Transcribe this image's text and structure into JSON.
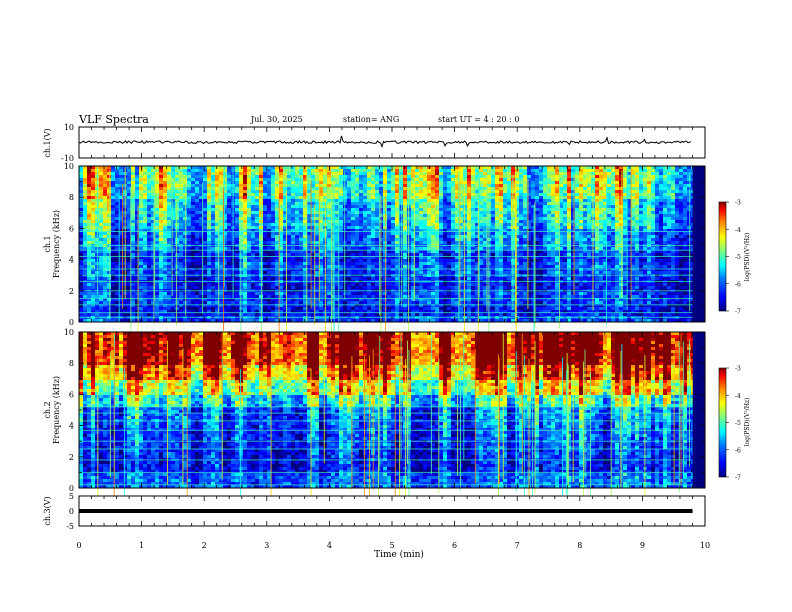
{
  "header": {
    "title": "VLF Spectra",
    "date": "Jul. 30, 2025",
    "station": "station= ANG",
    "start": "start UT =  4 : 20 : 0"
  },
  "colors": {
    "spectrum": [
      "#00007f",
      "#0000ff",
      "#007fff",
      "#00ffff",
      "#7fff7f",
      "#ffff00",
      "#ff7f00",
      "#ff0000",
      "#7f0000"
    ]
  },
  "chart_data": [
    {
      "type": "line",
      "name": "ch1-waveform",
      "ylabel": "ch.1(V)",
      "ylim": [
        -10,
        10
      ],
      "ytick_labels": [
        "10",
        "-10"
      ],
      "xlim": [
        0,
        10
      ],
      "x": [
        0,
        1,
        2,
        3,
        4,
        5,
        6,
        7,
        8,
        9,
        9.8
      ],
      "y": [
        0.2,
        0.3,
        0.1,
        0.2,
        0.3,
        0.2,
        0.1,
        0.2,
        0.3,
        0.2,
        0.2
      ]
    },
    {
      "type": "heatmap",
      "name": "ch1-spectrogram",
      "ylabel_top": "ch.1",
      "ylabel": "Frequency (kHz)",
      "ylim": [
        0,
        10
      ],
      "yticks": [
        0,
        2,
        4,
        6,
        8,
        10
      ],
      "ytick_labels": [
        "0",
        "2",
        "4",
        "6",
        "8",
        "10"
      ],
      "xlim": [
        0,
        10
      ],
      "data_until_min": 9.8,
      "colorbar": {
        "label": "log(PSD)(V²/Hz)",
        "range": [
          -7,
          -3
        ],
        "tick_labels": [
          "-3",
          "-4",
          "-5",
          "-6",
          "-7"
        ]
      },
      "band_levels_log_psd": [
        {
          "kHz": [
            0.0,
            0.4
          ],
          "level": -6.4
        },
        {
          "kHz": [
            0.4,
            1.2
          ],
          "level": -6.8
        },
        {
          "kHz": [
            1.2,
            2.0
          ],
          "level": -6.6
        },
        {
          "kHz": [
            2.0,
            3.0
          ],
          "level": -6.9
        },
        {
          "kHz": [
            3.0,
            4.0
          ],
          "level": -6.7
        },
        {
          "kHz": [
            4.0,
            4.8
          ],
          "level": -6.9
        },
        {
          "kHz": [
            4.8,
            6.0
          ],
          "level": -6.5
        },
        {
          "kHz": [
            6.0,
            8.0
          ],
          "level": -6.2
        },
        {
          "kHz": [
            8.0,
            10.0
          ],
          "level": -5.8
        }
      ]
    },
    {
      "type": "heatmap",
      "name": "ch2-spectrogram",
      "ylabel_top": "ch.2",
      "ylabel": "Frequency (kHz)",
      "ylim": [
        0,
        10
      ],
      "yticks": [
        0,
        2,
        4,
        6,
        8,
        10
      ],
      "ytick_labels": [
        "0",
        "2",
        "4",
        "6",
        "8",
        "10"
      ],
      "xlim": [
        0,
        10
      ],
      "data_until_min": 9.8,
      "colorbar": {
        "label": "log(PSD)(V²/Hz)",
        "range": [
          -7,
          -3
        ],
        "tick_labels": [
          "-3",
          "-4",
          "-5",
          "-6",
          "-7"
        ]
      },
      "band_levels_log_psd": [
        {
          "kHz": [
            0.0,
            1.0
          ],
          "level": -6.3
        },
        {
          "kHz": [
            1.0,
            2.5
          ],
          "level": -6.8
        },
        {
          "kHz": [
            2.5,
            4.0
          ],
          "level": -6.7
        },
        {
          "kHz": [
            4.0,
            5.2
          ],
          "level": -6.6
        },
        {
          "kHz": [
            5.2,
            6.0
          ],
          "level": -5.9
        },
        {
          "kHz": [
            6.0,
            7.0
          ],
          "level": -5.2
        },
        {
          "kHz": [
            7.0,
            8.0
          ],
          "level": -4.5
        },
        {
          "kHz": [
            8.0,
            10.0
          ],
          "level": -3.9
        }
      ]
    },
    {
      "type": "line",
      "name": "ch3-waveform",
      "ylabel": "ch.3(V)",
      "ylim": [
        -5,
        5
      ],
      "ytick_labels": [
        "5",
        "0",
        "-5"
      ],
      "xlim": [
        0,
        10
      ],
      "x": [
        0,
        9.8
      ],
      "y": [
        0,
        0
      ],
      "xlabel": "Time (min)",
      "xtick_labels": [
        "0",
        "1",
        "2",
        "3",
        "4",
        "5",
        "6",
        "7",
        "8",
        "9",
        "10"
      ]
    }
  ]
}
